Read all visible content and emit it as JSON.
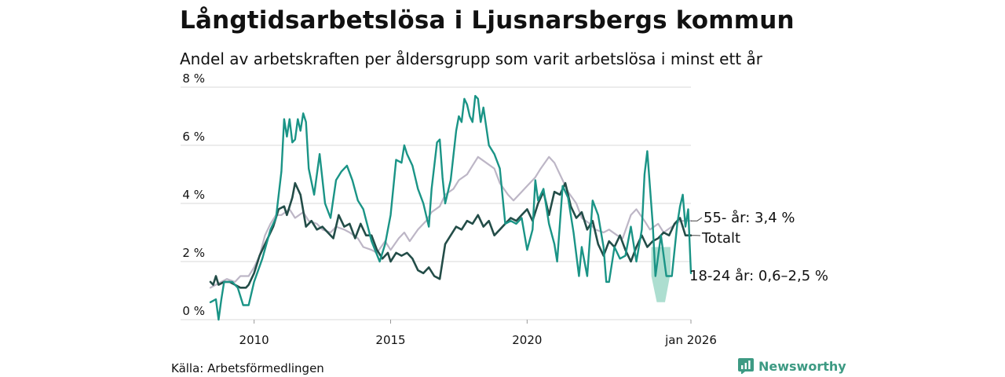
{
  "header": {
    "title": "Långtidsarbetslösa i Ljusnarsbergs kommun",
    "subtitle": "Andel av arbetskraften per åldersgrupp som varit arbetslösa i minst ett år"
  },
  "footer": {
    "source": "Källa: Arbetsförmedlingen",
    "brand": "Newsworthy"
  },
  "colors": {
    "youth": "#1a9486",
    "youth_range": "#9fd8c8",
    "total": "#234d48",
    "older": "#bdb6c6",
    "grid": "#d9d9d9",
    "brand": "#3d9a83"
  },
  "chart_data": {
    "type": "line",
    "title": "Långtidsarbetslösa i Ljusnarsbergs kommun",
    "subtitle": "Andel av arbetskraften per åldersgrupp som varit arbetslösa i minst ett år",
    "xlabel": "",
    "ylabel": "",
    "xlim": [
      2008.4,
      2026.0
    ],
    "ylim": [
      0,
      8
    ],
    "yticks": [
      0,
      2,
      4,
      6,
      8
    ],
    "ytick_labels": [
      "0 %",
      "2 %",
      "4 %",
      "6 %",
      "8 %"
    ],
    "xticks": [
      2010,
      2015,
      2020,
      2026.0
    ],
    "xtick_labels": [
      "2010",
      "2015",
      "2020",
      "jan 2026"
    ],
    "grid": true,
    "series": [
      {
        "name": "55- år",
        "end_label": "55- år: 3,4 %",
        "points": [
          [
            2008.4,
            1.1
          ],
          [
            2008.8,
            1.3
          ],
          [
            2009.0,
            1.4
          ],
          [
            2009.3,
            1.3
          ],
          [
            2009.5,
            1.5
          ],
          [
            2009.8,
            1.5
          ],
          [
            2010.0,
            1.8
          ],
          [
            2010.2,
            2.2
          ],
          [
            2010.4,
            2.9
          ],
          [
            2010.6,
            3.3
          ],
          [
            2010.8,
            3.6
          ],
          [
            2011.0,
            3.6
          ],
          [
            2011.3,
            3.8
          ],
          [
            2011.5,
            3.5
          ],
          [
            2011.8,
            3.7
          ],
          [
            2012.0,
            3.4
          ],
          [
            2012.3,
            3.3
          ],
          [
            2012.5,
            3.1
          ],
          [
            2012.8,
            3.0
          ],
          [
            2013.0,
            3.2
          ],
          [
            2013.3,
            3.1
          ],
          [
            2013.5,
            3.0
          ],
          [
            2013.8,
            2.8
          ],
          [
            2014.0,
            2.5
          ],
          [
            2014.3,
            2.4
          ],
          [
            2014.5,
            2.3
          ],
          [
            2014.8,
            2.7
          ],
          [
            2015.0,
            2.4
          ],
          [
            2015.3,
            2.8
          ],
          [
            2015.5,
            3.0
          ],
          [
            2015.7,
            2.7
          ],
          [
            2016.0,
            3.1
          ],
          [
            2016.3,
            3.4
          ],
          [
            2016.5,
            3.7
          ],
          [
            2016.8,
            3.9
          ],
          [
            2017.0,
            4.3
          ],
          [
            2017.3,
            4.5
          ],
          [
            2017.5,
            4.8
          ],
          [
            2017.8,
            5.0
          ],
          [
            2018.0,
            5.3
          ],
          [
            2018.2,
            5.6
          ],
          [
            2018.5,
            5.4
          ],
          [
            2018.8,
            5.2
          ],
          [
            2019.0,
            4.7
          ],
          [
            2019.3,
            4.3
          ],
          [
            2019.5,
            4.1
          ],
          [
            2019.8,
            4.4
          ],
          [
            2020.0,
            4.6
          ],
          [
            2020.3,
            4.9
          ],
          [
            2020.5,
            5.2
          ],
          [
            2020.8,
            5.6
          ],
          [
            2021.0,
            5.4
          ],
          [
            2021.3,
            4.8
          ],
          [
            2021.5,
            4.4
          ],
          [
            2021.8,
            4.0
          ],
          [
            2022.0,
            3.5
          ],
          [
            2022.3,
            3.3
          ],
          [
            2022.5,
            3.1
          ],
          [
            2022.8,
            3.0
          ],
          [
            2023.0,
            3.1
          ],
          [
            2023.3,
            2.9
          ],
          [
            2023.5,
            2.8
          ],
          [
            2023.8,
            3.6
          ],
          [
            2024.0,
            3.8
          ],
          [
            2024.3,
            3.4
          ],
          [
            2024.5,
            3.1
          ],
          [
            2024.8,
            3.3
          ],
          [
            2025.0,
            3.0
          ],
          [
            2025.3,
            3.2
          ],
          [
            2025.6,
            3.4
          ],
          [
            2025.8,
            3.4
          ],
          [
            2026.0,
            3.4
          ]
        ]
      },
      {
        "name": "Totalt",
        "end_label": "Totalt",
        "points": [
          [
            2008.4,
            1.3
          ],
          [
            2008.5,
            1.2
          ],
          [
            2008.6,
            1.5
          ],
          [
            2008.7,
            1.2
          ],
          [
            2008.9,
            1.3
          ],
          [
            2009.1,
            1.3
          ],
          [
            2009.3,
            1.2
          ],
          [
            2009.5,
            1.1
          ],
          [
            2009.7,
            1.1
          ],
          [
            2009.8,
            1.2
          ],
          [
            2010.0,
            1.6
          ],
          [
            2010.2,
            2.2
          ],
          [
            2010.5,
            2.8
          ],
          [
            2010.7,
            3.2
          ],
          [
            2010.9,
            3.8
          ],
          [
            2011.1,
            3.9
          ],
          [
            2011.2,
            3.6
          ],
          [
            2011.4,
            4.2
          ],
          [
            2011.5,
            4.7
          ],
          [
            2011.7,
            4.3
          ],
          [
            2011.9,
            3.2
          ],
          [
            2012.1,
            3.4
          ],
          [
            2012.3,
            3.1
          ],
          [
            2012.5,
            3.2
          ],
          [
            2012.7,
            3.0
          ],
          [
            2012.9,
            2.8
          ],
          [
            2013.1,
            3.6
          ],
          [
            2013.3,
            3.2
          ],
          [
            2013.5,
            3.3
          ],
          [
            2013.7,
            2.8
          ],
          [
            2013.9,
            3.3
          ],
          [
            2014.1,
            2.9
          ],
          [
            2014.3,
            2.9
          ],
          [
            2014.5,
            2.4
          ],
          [
            2014.7,
            2.1
          ],
          [
            2014.9,
            2.3
          ],
          [
            2015.0,
            2.0
          ],
          [
            2015.2,
            2.3
          ],
          [
            2015.4,
            2.2
          ],
          [
            2015.6,
            2.3
          ],
          [
            2015.8,
            2.1
          ],
          [
            2016.0,
            1.7
          ],
          [
            2016.2,
            1.6
          ],
          [
            2016.4,
            1.8
          ],
          [
            2016.6,
            1.5
          ],
          [
            2016.8,
            1.4
          ],
          [
            2017.0,
            2.6
          ],
          [
            2017.2,
            2.9
          ],
          [
            2017.4,
            3.2
          ],
          [
            2017.6,
            3.1
          ],
          [
            2017.8,
            3.4
          ],
          [
            2018.0,
            3.3
          ],
          [
            2018.2,
            3.6
          ],
          [
            2018.4,
            3.2
          ],
          [
            2018.6,
            3.4
          ],
          [
            2018.8,
            2.9
          ],
          [
            2019.0,
            3.1
          ],
          [
            2019.2,
            3.3
          ],
          [
            2019.4,
            3.5
          ],
          [
            2019.6,
            3.4
          ],
          [
            2019.8,
            3.6
          ],
          [
            2020.0,
            3.8
          ],
          [
            2020.2,
            3.4
          ],
          [
            2020.4,
            4.0
          ],
          [
            2020.6,
            4.4
          ],
          [
            2020.8,
            3.6
          ],
          [
            2021.0,
            4.4
          ],
          [
            2021.2,
            4.3
          ],
          [
            2021.4,
            4.7
          ],
          [
            2021.6,
            3.9
          ],
          [
            2021.8,
            3.5
          ],
          [
            2022.0,
            3.7
          ],
          [
            2022.2,
            3.1
          ],
          [
            2022.4,
            3.4
          ],
          [
            2022.6,
            2.6
          ],
          [
            2022.8,
            2.2
          ],
          [
            2023.0,
            2.7
          ],
          [
            2023.2,
            2.5
          ],
          [
            2023.4,
            2.9
          ],
          [
            2023.6,
            2.4
          ],
          [
            2023.8,
            2.0
          ],
          [
            2024.0,
            2.5
          ],
          [
            2024.2,
            2.9
          ],
          [
            2024.4,
            2.5
          ],
          [
            2024.6,
            2.7
          ],
          [
            2024.8,
            2.8
          ],
          [
            2025.0,
            3.0
          ],
          [
            2025.2,
            2.9
          ],
          [
            2025.4,
            3.3
          ],
          [
            2025.6,
            3.5
          ],
          [
            2025.8,
            2.9
          ],
          [
            2026.0,
            2.9
          ]
        ]
      },
      {
        "name": "18-24 år",
        "end_label": "18-24 år: 0,6–2,5 %",
        "range_band": [
          [
            2024.55,
            1.5,
            2.5
          ],
          [
            2024.75,
            0.6,
            2.5
          ],
          [
            2025.05,
            0.6,
            2.5
          ],
          [
            2025.25,
            1.6,
            2.5
          ]
        ],
        "points": [
          [
            2008.4,
            0.6
          ],
          [
            2008.6,
            0.7
          ],
          [
            2008.7,
            0.0
          ],
          [
            2008.8,
            0.7
          ],
          [
            2008.9,
            1.3
          ],
          [
            2009.2,
            1.3
          ],
          [
            2009.4,
            1.1
          ],
          [
            2009.6,
            0.5
          ],
          [
            2009.8,
            0.5
          ],
          [
            2010.0,
            1.3
          ],
          [
            2010.3,
            2.1
          ],
          [
            2010.6,
            3.1
          ],
          [
            2010.8,
            3.5
          ],
          [
            2011.0,
            5.1
          ],
          [
            2011.1,
            6.9
          ],
          [
            2011.2,
            6.3
          ],
          [
            2011.3,
            6.9
          ],
          [
            2011.4,
            6.1
          ],
          [
            2011.5,
            6.2
          ],
          [
            2011.6,
            6.9
          ],
          [
            2011.7,
            6.5
          ],
          [
            2011.8,
            7.1
          ],
          [
            2011.9,
            6.8
          ],
          [
            2012.0,
            5.2
          ],
          [
            2012.2,
            4.3
          ],
          [
            2012.4,
            5.7
          ],
          [
            2012.6,
            4.0
          ],
          [
            2012.8,
            3.5
          ],
          [
            2013.0,
            4.8
          ],
          [
            2013.2,
            5.1
          ],
          [
            2013.4,
            5.3
          ],
          [
            2013.6,
            4.8
          ],
          [
            2013.8,
            4.1
          ],
          [
            2014.0,
            3.8
          ],
          [
            2014.3,
            2.7
          ],
          [
            2014.6,
            2.0
          ],
          [
            2014.8,
            2.6
          ],
          [
            2015.0,
            3.6
          ],
          [
            2015.2,
            5.5
          ],
          [
            2015.4,
            5.4
          ],
          [
            2015.5,
            6.0
          ],
          [
            2015.6,
            5.7
          ],
          [
            2015.8,
            5.3
          ],
          [
            2016.0,
            4.5
          ],
          [
            2016.2,
            4.0
          ],
          [
            2016.4,
            3.2
          ],
          [
            2016.5,
            4.5
          ],
          [
            2016.7,
            6.1
          ],
          [
            2016.8,
            6.2
          ],
          [
            2016.9,
            4.9
          ],
          [
            2017.0,
            4.0
          ],
          [
            2017.2,
            4.8
          ],
          [
            2017.4,
            6.5
          ],
          [
            2017.5,
            7.0
          ],
          [
            2017.6,
            6.8
          ],
          [
            2017.7,
            7.6
          ],
          [
            2017.8,
            7.4
          ],
          [
            2017.9,
            7.0
          ],
          [
            2018.0,
            6.8
          ],
          [
            2018.1,
            7.7
          ],
          [
            2018.2,
            7.6
          ],
          [
            2018.3,
            6.8
          ],
          [
            2018.4,
            7.3
          ],
          [
            2018.6,
            6.0
          ],
          [
            2018.8,
            5.7
          ],
          [
            2019.0,
            5.2
          ],
          [
            2019.2,
            3.3
          ],
          [
            2019.4,
            3.4
          ],
          [
            2019.6,
            3.3
          ],
          [
            2019.8,
            3.5
          ],
          [
            2020.0,
            2.4
          ],
          [
            2020.2,
            3.1
          ],
          [
            2020.3,
            4.8
          ],
          [
            2020.4,
            4.1
          ],
          [
            2020.6,
            4.5
          ],
          [
            2020.8,
            3.3
          ],
          [
            2021.0,
            2.6
          ],
          [
            2021.1,
            2.0
          ],
          [
            2021.3,
            4.6
          ],
          [
            2021.5,
            4.2
          ],
          [
            2021.7,
            3.0
          ],
          [
            2021.9,
            1.5
          ],
          [
            2022.0,
            2.5
          ],
          [
            2022.2,
            1.5
          ],
          [
            2022.4,
            4.1
          ],
          [
            2022.6,
            3.6
          ],
          [
            2022.8,
            2.5
          ],
          [
            2022.9,
            1.3
          ],
          [
            2023.0,
            1.3
          ],
          [
            2023.2,
            2.5
          ],
          [
            2023.4,
            2.1
          ],
          [
            2023.6,
            2.2
          ],
          [
            2023.8,
            3.2
          ],
          [
            2024.0,
            2.0
          ],
          [
            2024.2,
            3.1
          ],
          [
            2024.3,
            5.0
          ],
          [
            2024.4,
            5.8
          ],
          [
            2024.6,
            3.3
          ],
          [
            2024.7,
            1.5
          ],
          [
            2024.9,
            2.9
          ],
          [
            2025.1,
            1.5
          ],
          [
            2025.3,
            1.5
          ],
          [
            2025.5,
            3.3
          ],
          [
            2025.6,
            3.9
          ],
          [
            2025.7,
            4.3
          ],
          [
            2025.8,
            3.2
          ],
          [
            2025.9,
            3.8
          ],
          [
            2026.0,
            1.6
          ]
        ]
      }
    ]
  }
}
